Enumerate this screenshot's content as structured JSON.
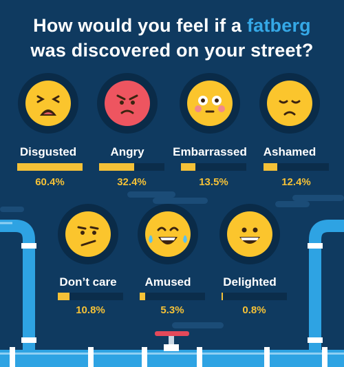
{
  "title": {
    "line1_prefix": "How would you feel if a ",
    "line1_highlight": "fatberg",
    "line2": "was discovered on your street?"
  },
  "colors": {
    "background": "#0f3a60",
    "emoji_ring": "#0a2b48",
    "face_yellow": "#fbc52d",
    "face_red": "#ee5560",
    "bar_fill": "#f5c137",
    "bar_track": "#0b2d4b",
    "highlight": "#35a8e6",
    "pipe": "#2ea3e3",
    "pipe_light": "#ffffff"
  },
  "chart_data": {
    "type": "bar",
    "categories": [
      "Disgusted",
      "Angry",
      "Embarrassed",
      "Ashamed",
      "Don’t care",
      "Amused",
      "Delighted"
    ],
    "values": [
      60.4,
      32.4,
      13.5,
      12.4,
      10.8,
      5.3,
      0.8
    ],
    "value_labels": [
      "60.4%",
      "32.4%",
      "13.5%",
      "12.4%",
      "10.8%",
      "5.3%",
      "0.8%"
    ],
    "icons": [
      "disgusted-face-icon",
      "angry-face-icon",
      "embarrassed-face-icon",
      "ashamed-face-icon",
      "dont-care-face-icon",
      "amused-face-icon",
      "delighted-face-icon"
    ],
    "ylim": [
      0,
      100
    ],
    "legend": "none",
    "grid": false
  }
}
